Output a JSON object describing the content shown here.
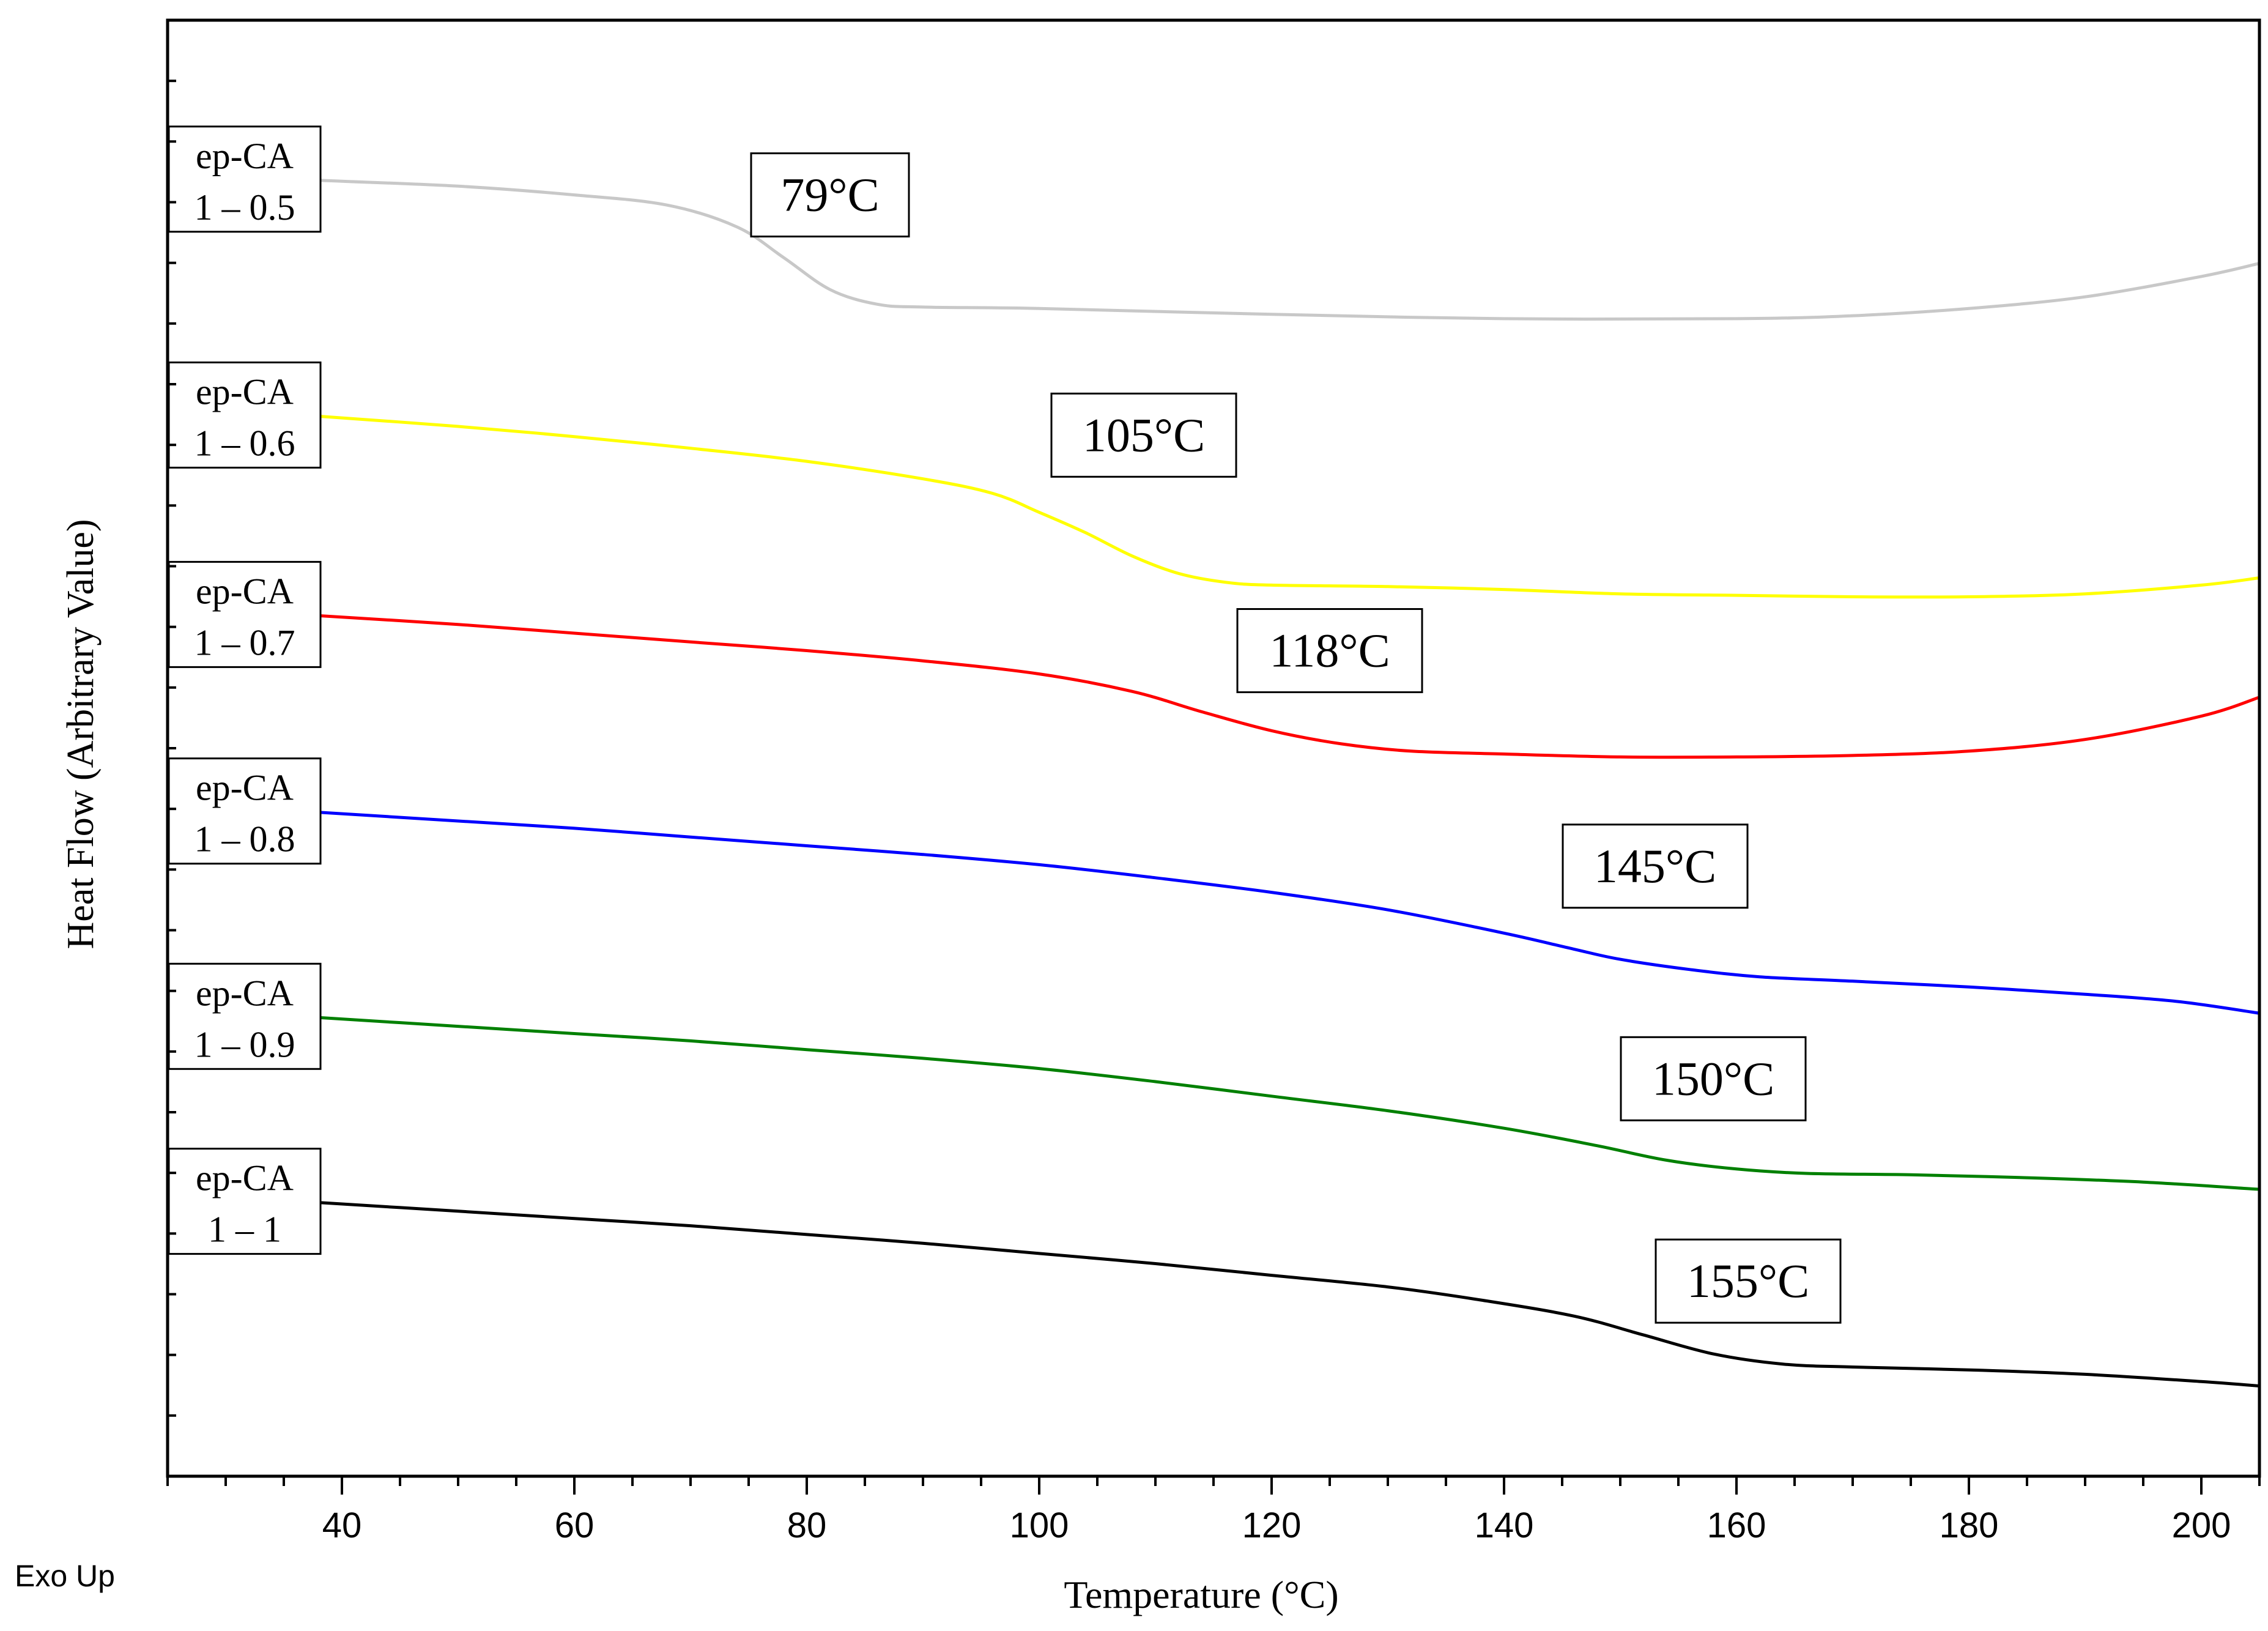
{
  "chart_data": {
    "type": "line",
    "title": "",
    "xlabel": "Temperature (°C)",
    "ylabel": "Heat Flow (Arbitrary Value)",
    "corner_note": "Exo Up",
    "xlim": [
      25,
      205
    ],
    "ylim": [
      0,
      100
    ],
    "x_ticks": [
      40,
      60,
      80,
      100,
      120,
      140,
      160,
      180,
      200
    ],
    "x_tick_labels": [
      "40",
      "60",
      "80",
      "100",
      "120",
      "140",
      "160",
      "180",
      "200"
    ],
    "y_tick_labels_shown": false,
    "grid": false,
    "series": [
      {
        "name_line1": "ep-CA",
        "name_line2": "1 – 0.5",
        "color": "#c8c8c8",
        "tg_label": "79°C",
        "tg_label_at": [
          82,
          88
        ],
        "points": [
          [
            38,
            89.0
          ],
          [
            50,
            88.6
          ],
          [
            60,
            88.0
          ],
          [
            68,
            87.3
          ],
          [
            74,
            85.8
          ],
          [
            78,
            83.7
          ],
          [
            82,
            81.5
          ],
          [
            86,
            80.5
          ],
          [
            90,
            80.3
          ],
          [
            100,
            80.2
          ],
          [
            120,
            79.8
          ],
          [
            140,
            79.5
          ],
          [
            160,
            79.5
          ],
          [
            170,
            79.7
          ],
          [
            180,
            80.2
          ],
          [
            190,
            81.0
          ],
          [
            200,
            82.4
          ],
          [
            205,
            83.3
          ]
        ]
      },
      {
        "name_line1": "ep-CA",
        "name_line2": "1 – 0.6",
        "color": "#ffff00",
        "tg_label": "105°C",
        "tg_label_at": [
          109,
          71.5
        ]
      },
      {
        "name_line1": "ep-CA",
        "name_line2": "1 – 0.7",
        "color": "#ff0000",
        "tg_label": "118°C",
        "tg_label_at": [
          125,
          56.7
        ]
      },
      {
        "name_line1": "ep-CA",
        "name_line2": "1 – 0.8",
        "color": "#0000ff",
        "tg_label": "145°C",
        "tg_label_at": [
          153,
          41.9
        ]
      },
      {
        "name_line1": "ep-CA",
        "name_line2": "1 – 0.9",
        "color": "#008000",
        "tg_label": "150°C",
        "tg_label_at": [
          158,
          27.3
        ]
      },
      {
        "name_line1": "ep-CA",
        "name_line2": "1 – 1",
        "color": "#000000",
        "tg_label": "155°C",
        "tg_label_at": [
          161,
          13.4
        ]
      }
    ]
  }
}
